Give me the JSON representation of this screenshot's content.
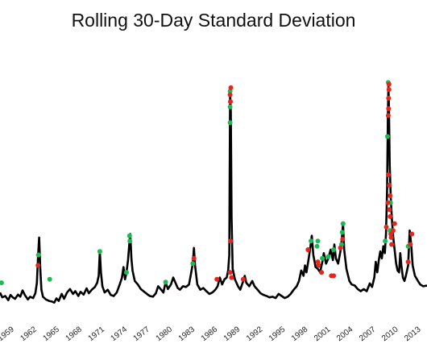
{
  "chart_data": {
    "type": "line",
    "title": "Rolling 30-Day Standard Deviation",
    "x_ticks": [
      "1959",
      "1962",
      "1965",
      "1968",
      "1971",
      "1974",
      "1977",
      "1980",
      "1983",
      "1986",
      "1989",
      "1992",
      "1995",
      "1998",
      "2001",
      "2004",
      "2007",
      "2010",
      "2013"
    ],
    "xlim": [
      1957.3,
      2014.0
    ],
    "series": [
      {
        "values": [
          [
            1957.3,
            0.62
          ],
          [
            1957.6,
            0.48
          ],
          [
            1958.0,
            0.52
          ],
          [
            1958.4,
            0.4
          ],
          [
            1958.7,
            0.55
          ],
          [
            1959.0,
            0.48
          ],
          [
            1959.3,
            0.44
          ],
          [
            1959.7,
            0.56
          ],
          [
            1960.0,
            0.5
          ],
          [
            1960.3,
            0.68
          ],
          [
            1960.6,
            0.55
          ],
          [
            1961.0,
            0.42
          ],
          [
            1961.3,
            0.5
          ],
          [
            1961.7,
            0.46
          ],
          [
            1962.0,
            0.6
          ],
          [
            1962.2,
            0.9
          ],
          [
            1962.35,
            1.65
          ],
          [
            1962.5,
            2.2
          ],
          [
            1962.65,
            1.3
          ],
          [
            1962.8,
            0.7
          ],
          [
            1963.0,
            0.5
          ],
          [
            1963.4,
            0.42
          ],
          [
            1963.8,
            0.38
          ],
          [
            1964.2,
            0.36
          ],
          [
            1964.5,
            0.33
          ],
          [
            1964.8,
            0.45
          ],
          [
            1965.1,
            0.38
          ],
          [
            1965.5,
            0.58
          ],
          [
            1965.8,
            0.44
          ],
          [
            1966.2,
            0.62
          ],
          [
            1966.6,
            0.72
          ],
          [
            1967.0,
            0.58
          ],
          [
            1967.3,
            0.66
          ],
          [
            1967.7,
            0.52
          ],
          [
            1968.0,
            0.64
          ],
          [
            1968.4,
            0.56
          ],
          [
            1968.8,
            0.74
          ],
          [
            1969.1,
            0.6
          ],
          [
            1969.5,
            0.7
          ],
          [
            1969.9,
            0.78
          ],
          [
            1970.2,
            0.9
          ],
          [
            1970.4,
            1.1
          ],
          [
            1970.55,
            1.8
          ],
          [
            1970.7,
            1.2
          ],
          [
            1970.9,
            0.8
          ],
          [
            1971.2,
            0.62
          ],
          [
            1971.6,
            0.7
          ],
          [
            1972.0,
            0.55
          ],
          [
            1972.4,
            0.52
          ],
          [
            1972.8,
            0.62
          ],
          [
            1973.2,
            0.85
          ],
          [
            1973.5,
            1.05
          ],
          [
            1973.7,
            1.35
          ],
          [
            1973.9,
            1.0
          ],
          [
            1974.1,
            1.2
          ],
          [
            1974.3,
            1.55
          ],
          [
            1974.5,
            2.1
          ],
          [
            1974.6,
            2.3
          ],
          [
            1974.75,
            1.6
          ],
          [
            1974.9,
            1.25
          ],
          [
            1975.2,
            0.95
          ],
          [
            1975.6,
            0.85
          ],
          [
            1976.0,
            0.72
          ],
          [
            1976.4,
            0.65
          ],
          [
            1976.8,
            0.58
          ],
          [
            1977.2,
            0.52
          ],
          [
            1977.6,
            0.5
          ],
          [
            1978.0,
            0.6
          ],
          [
            1978.3,
            0.8
          ],
          [
            1978.7,
            0.7
          ],
          [
            1979.0,
            0.62
          ],
          [
            1979.3,
            0.92
          ],
          [
            1979.6,
            0.72
          ],
          [
            1980.0,
            0.85
          ],
          [
            1980.3,
            1.05
          ],
          [
            1980.6,
            0.9
          ],
          [
            1980.9,
            0.75
          ],
          [
            1981.2,
            0.7
          ],
          [
            1981.6,
            0.8
          ],
          [
            1982.0,
            0.78
          ],
          [
            1982.4,
            0.85
          ],
          [
            1982.7,
            1.2
          ],
          [
            1982.9,
            1.45
          ],
          [
            1983.05,
            1.9
          ],
          [
            1983.2,
            1.4
          ],
          [
            1983.5,
            0.85
          ],
          [
            1983.9,
            0.7
          ],
          [
            1984.3,
            0.75
          ],
          [
            1984.7,
            0.66
          ],
          [
            1985.1,
            0.58
          ],
          [
            1985.5,
            0.62
          ],
          [
            1985.9,
            0.7
          ],
          [
            1986.2,
            0.8
          ],
          [
            1986.5,
            1.05
          ],
          [
            1986.8,
            0.85
          ],
          [
            1987.1,
            1.0
          ],
          [
            1987.4,
            1.05
          ],
          [
            1987.6,
            1.25
          ],
          [
            1987.75,
            1.7
          ],
          [
            1987.85,
            6.4
          ],
          [
            1987.95,
            5.8
          ],
          [
            1988.05,
            2.8
          ],
          [
            1988.2,
            1.3
          ],
          [
            1988.5,
            1.0
          ],
          [
            1988.9,
            0.8
          ],
          [
            1989.2,
            0.7
          ],
          [
            1989.6,
            0.95
          ],
          [
            1989.8,
            1.1
          ],
          [
            1990.0,
            0.9
          ],
          [
            1990.4,
            0.8
          ],
          [
            1990.8,
            0.95
          ],
          [
            1991.1,
            0.8
          ],
          [
            1991.5,
            0.7
          ],
          [
            1991.9,
            0.6
          ],
          [
            1992.3,
            0.55
          ],
          [
            1992.7,
            0.52
          ],
          [
            1993.1,
            0.48
          ],
          [
            1993.5,
            0.5
          ],
          [
            1993.9,
            0.46
          ],
          [
            1994.3,
            0.58
          ],
          [
            1994.7,
            0.52
          ],
          [
            1995.1,
            0.46
          ],
          [
            1995.5,
            0.5
          ],
          [
            1995.9,
            0.58
          ],
          [
            1996.3,
            0.7
          ],
          [
            1996.7,
            0.8
          ],
          [
            1997.0,
            0.95
          ],
          [
            1997.3,
            1.25
          ],
          [
            1997.6,
            1.1
          ],
          [
            1997.8,
            1.4
          ],
          [
            1998.0,
            1.2
          ],
          [
            1998.3,
            1.6
          ],
          [
            1998.5,
            1.9
          ],
          [
            1998.7,
            2.25
          ],
          [
            1998.9,
            1.7
          ],
          [
            1999.2,
            1.35
          ],
          [
            1999.5,
            1.3
          ],
          [
            1999.8,
            1.2
          ],
          [
            2000.1,
            1.5
          ],
          [
            2000.3,
            1.75
          ],
          [
            2000.6,
            1.45
          ],
          [
            2000.9,
            1.6
          ],
          [
            2001.2,
            1.85
          ],
          [
            2001.5,
            1.55
          ],
          [
            2001.7,
            2.0
          ],
          [
            2001.9,
            1.6
          ],
          [
            2002.2,
            1.45
          ],
          [
            2002.5,
            1.8
          ],
          [
            2002.7,
            2.2
          ],
          [
            2002.85,
            2.6
          ],
          [
            2003.0,
            1.85
          ],
          [
            2003.3,
            1.3
          ],
          [
            2003.7,
            0.95
          ],
          [
            2004.0,
            0.85
          ],
          [
            2004.4,
            0.82
          ],
          [
            2004.8,
            0.72
          ],
          [
            2005.2,
            0.66
          ],
          [
            2005.6,
            0.72
          ],
          [
            2006.0,
            0.66
          ],
          [
            2006.4,
            0.88
          ],
          [
            2006.7,
            0.78
          ],
          [
            2007.0,
            1.05
          ],
          [
            2007.2,
            1.5
          ],
          [
            2007.4,
            1.2
          ],
          [
            2007.6,
            1.55
          ],
          [
            2007.8,
            1.8
          ],
          [
            2008.0,
            1.6
          ],
          [
            2008.2,
            1.95
          ],
          [
            2008.4,
            1.75
          ],
          [
            2008.55,
            2.3
          ],
          [
            2008.7,
            3.6
          ],
          [
            2008.8,
            5.6
          ],
          [
            2008.88,
            6.6
          ],
          [
            2008.95,
            5.9
          ],
          [
            2009.05,
            4.3
          ],
          [
            2009.2,
            3.3
          ],
          [
            2009.35,
            2.7
          ],
          [
            2009.5,
            2.25
          ],
          [
            2009.7,
            1.85
          ],
          [
            2009.9,
            1.45
          ],
          [
            2010.1,
            1.25
          ],
          [
            2010.3,
            1.2
          ],
          [
            2010.45,
            1.75
          ],
          [
            2010.6,
            1.4
          ],
          [
            2010.8,
            1.05
          ],
          [
            2011.0,
            0.95
          ],
          [
            2011.2,
            1.1
          ],
          [
            2011.5,
            1.4
          ],
          [
            2011.7,
            2.4
          ],
          [
            2011.9,
            2.0
          ],
          [
            2012.1,
            1.4
          ],
          [
            2012.4,
            1.1
          ],
          [
            2012.8,
            0.95
          ],
          [
            2013.1,
            0.85
          ],
          [
            2013.5,
            0.8
          ],
          [
            2014.0,
            0.82
          ]
        ]
      }
    ],
    "markers": {
      "colors": {
        "green": "#1db954",
        "red": "#e5261f"
      },
      "green": [
        [
          1957.5,
          0.9
        ],
        [
          1962.4,
          1.7
        ],
        [
          1963.9,
          1.0
        ],
        [
          1970.55,
          1.8
        ],
        [
          1974.5,
          2.25
        ],
        [
          1974.55,
          2.1
        ],
        [
          1974.1,
          1.2
        ],
        [
          1979.3,
          0.92
        ],
        [
          1982.9,
          1.45
        ],
        [
          1987.85,
          5.5
        ],
        [
          1987.85,
          5.95
        ],
        [
          1987.85,
          6.4
        ],
        [
          1998.6,
          2.1
        ],
        [
          1999.4,
          1.95
        ],
        [
          1999.5,
          2.1
        ],
        [
          2000.1,
          1.6
        ],
        [
          2000.9,
          1.65
        ],
        [
          2001.6,
          1.85
        ],
        [
          2002.65,
          2.0
        ],
        [
          2002.75,
          2.35
        ],
        [
          2002.85,
          2.6
        ],
        [
          2008.45,
          2.1
        ],
        [
          2008.75,
          5.1
        ],
        [
          2008.85,
          6.65
        ],
        [
          2009.1,
          2.4
        ],
        [
          2009.15,
          3.2
        ],
        [
          2011.5,
          1.95
        ]
      ],
      "red": [
        [
          1962.35,
          1.4
        ],
        [
          1983.05,
          1.6
        ],
        [
          1986.1,
          1.0
        ],
        [
          1987.85,
          1.2
        ],
        [
          1987.9,
          2.1
        ],
        [
          1987.9,
          6.1
        ],
        [
          1987.95,
          6.5
        ],
        [
          1987.85,
          6.3
        ],
        [
          1988.05,
          1.05
        ],
        [
          1989.6,
          1.0
        ],
        [
          1998.2,
          1.85
        ],
        [
          1999.5,
          1.5
        ],
        [
          1999.6,
          1.4
        ],
        [
          2000.0,
          1.2
        ],
        [
          2001.3,
          1.1
        ],
        [
          2001.6,
          1.1
        ],
        [
          2002.5,
          1.9
        ],
        [
          2002.8,
          2.15
        ],
        [
          2008.6,
          2.5
        ],
        [
          2008.8,
          3.2
        ],
        [
          2008.85,
          4.0
        ],
        [
          2008.85,
          5.7
        ],
        [
          2008.9,
          5.9
        ],
        [
          2008.9,
          6.2
        ],
        [
          2008.95,
          6.45
        ],
        [
          2008.95,
          6.6
        ],
        [
          2009.0,
          3.0
        ],
        [
          2009.1,
          3.4
        ],
        [
          2009.0,
          3.7
        ],
        [
          2009.1,
          2.8
        ],
        [
          2009.2,
          2.3
        ],
        [
          2009.25,
          2.2
        ],
        [
          2009.3,
          2.0
        ],
        [
          2009.5,
          2.4
        ],
        [
          2011.5,
          1.5
        ],
        [
          2011.8,
          2.0
        ],
        [
          2012.0,
          2.3
        ],
        [
          2009.7,
          2.6
        ]
      ]
    },
    "ylim": [
      0,
      7.4
    ],
    "grid": false,
    "legend": "none"
  }
}
